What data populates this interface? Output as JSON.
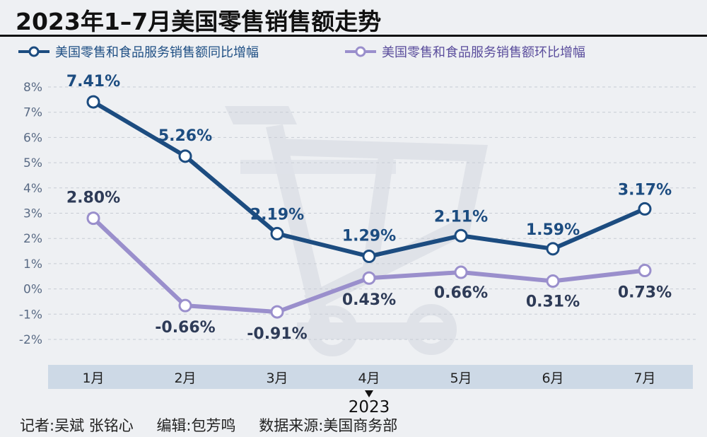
{
  "title": "2023年1–7月美国零售销售额走势",
  "footer": {
    "reporter": "记者:吴斌 张铭心",
    "editor": "编辑:包芳鸣",
    "source": "数据来源:美国商务部"
  },
  "colors": {
    "yoy": "#1c4c80",
    "mom": "#9a8fcc",
    "axis_band": "#cdd9e6",
    "grid": "#c7ccd4",
    "background": "#eef0f3"
  },
  "chart_data": {
    "type": "line",
    "categories": [
      "1月",
      "2月",
      "3月",
      "4月",
      "5月",
      "6月",
      "7月"
    ],
    "x_group_label": "2023",
    "series": [
      {
        "name": "美国零售和食品服务销售额同比增幅",
        "values": [
          7.41,
          5.26,
          2.19,
          1.29,
          2.11,
          1.59,
          3.17
        ],
        "labels": [
          "7.41%",
          "5.26%",
          "2.19%",
          "1.29%",
          "2.11%",
          "1.59%",
          "3.17%"
        ]
      },
      {
        "name": "美国零售和食品服务销售额环比增幅",
        "values": [
          2.8,
          -0.66,
          -0.91,
          0.43,
          0.66,
          0.31,
          0.73
        ],
        "labels": [
          "2.80%",
          "-0.66%",
          "-0.91%",
          "0.43%",
          "0.66%",
          "0.31%",
          "0.73%"
        ]
      }
    ],
    "y_ticks": [
      "8%",
      "7%",
      "6%",
      "5%",
      "4%",
      "3%",
      "2%",
      "1%",
      "0%",
      "-1%",
      "-2%"
    ],
    "ylim": [
      -2,
      8
    ],
    "grid": true,
    "legend_position": "top",
    "background_icon": "shopping-cart-icon"
  }
}
